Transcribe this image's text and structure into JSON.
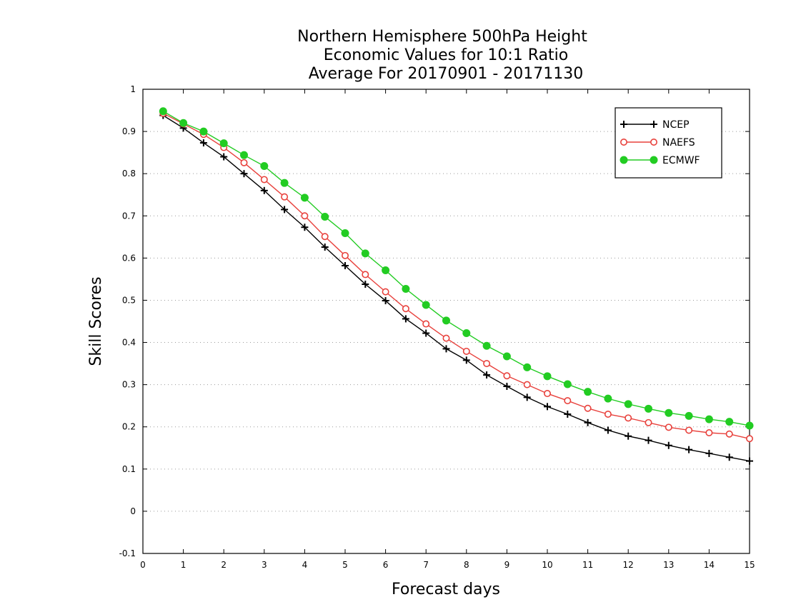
{
  "chart_data": {
    "type": "line",
    "title": [
      "Northern Hemisphere 500hPa Height",
      "Economic Values for 10:1 Ratio",
      "Average For 20170901 - 20171130"
    ],
    "xlabel": "Forecast days",
    "ylabel": "Skill Scores",
    "xlim": [
      0,
      15
    ],
    "ylim": [
      -0.1,
      1
    ],
    "xticks": [
      "0",
      "1",
      "2",
      "3",
      "4",
      "5",
      "6",
      "7",
      "8",
      "9",
      "10",
      "11",
      "12",
      "13",
      "14",
      "15"
    ],
    "yticks": [
      "-0.1",
      "0",
      "0.1",
      "0.2",
      "0.3",
      "0.4",
      "0.5",
      "0.6",
      "0.7",
      "0.8",
      "0.9",
      "1"
    ],
    "grid": "horizontal-dotted",
    "legend_position": "top-right",
    "x": [
      0.5,
      1,
      1.5,
      2,
      2.5,
      3,
      3.5,
      4,
      4.5,
      5,
      5.5,
      6,
      6.5,
      7,
      7.5,
      8,
      8.5,
      9,
      9.5,
      10,
      10.5,
      11,
      11.5,
      12,
      12.5,
      13,
      13.5,
      14,
      14.5,
      15
    ],
    "series": [
      {
        "name": "NCEP",
        "color": "#000000",
        "marker": "plus",
        "values": [
          0.938,
          0.908,
          0.873,
          0.84,
          0.8,
          0.76,
          0.715,
          0.673,
          0.626,
          0.582,
          0.538,
          0.499,
          0.456,
          0.422,
          0.385,
          0.358,
          0.323,
          0.296,
          0.27,
          0.248,
          0.23,
          0.21,
          0.192,
          0.178,
          0.168,
          0.156,
          0.146,
          0.137,
          0.128,
          0.119
        ]
      },
      {
        "name": "NAEFS",
        "color": "#e8413c",
        "marker": "open-circle",
        "values": [
          0.943,
          0.918,
          0.893,
          0.862,
          0.826,
          0.786,
          0.745,
          0.7,
          0.651,
          0.606,
          0.561,
          0.52,
          0.48,
          0.444,
          0.41,
          0.379,
          0.35,
          0.321,
          0.3,
          0.279,
          0.262,
          0.244,
          0.23,
          0.221,
          0.21,
          0.199,
          0.192,
          0.186,
          0.183,
          0.172
        ]
      },
      {
        "name": "ECMWF",
        "color": "#22cc22",
        "marker": "filled-circle",
        "values": [
          0.948,
          0.92,
          0.9,
          0.872,
          0.844,
          0.818,
          0.778,
          0.743,
          0.698,
          0.659,
          0.611,
          0.571,
          0.527,
          0.489,
          0.452,
          0.422,
          0.392,
          0.367,
          0.341,
          0.32,
          0.301,
          0.283,
          0.267,
          0.254,
          0.243,
          0.233,
          0.226,
          0.218,
          0.212,
          0.203
        ]
      }
    ]
  }
}
